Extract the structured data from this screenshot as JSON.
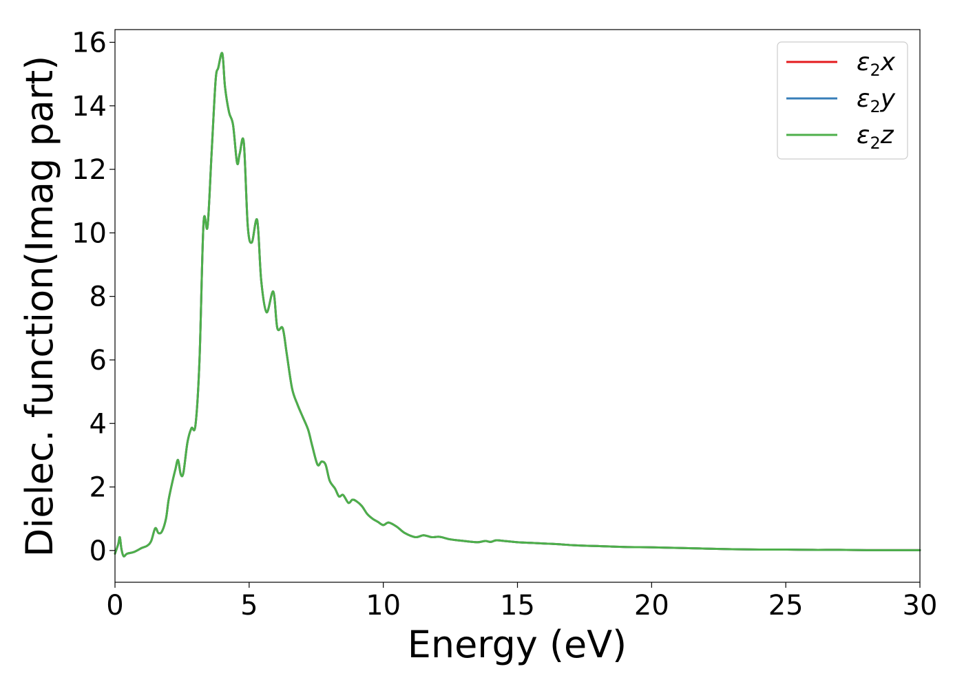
{
  "chart_data": {
    "type": "line",
    "title": "",
    "xlabel": "Energy (eV)",
    "ylabel": "Dielec. function(Imag part)",
    "xlim": [
      0,
      30
    ],
    "ylim": [
      -1,
      16.4
    ],
    "xticks": [
      0,
      5,
      10,
      15,
      20,
      25,
      30
    ],
    "yticks": [
      0,
      2,
      4,
      6,
      8,
      10,
      12,
      14,
      16
    ],
    "grid": false,
    "legend_position": "top-right",
    "legend": [
      {
        "base": "ε",
        "sub": "2",
        "comp": "x",
        "color": "#e41a1c"
      },
      {
        "base": "ε",
        "sub": "2",
        "comp": "y",
        "color": "#377eb8"
      },
      {
        "base": "ε",
        "sub": "2",
        "comp": "z",
        "color": "#4daf4a"
      }
    ],
    "x": [
      0.0,
      0.12,
      0.18,
      0.24,
      0.32,
      0.45,
      0.7,
      1.0,
      1.2,
      1.35,
      1.5,
      1.62,
      1.75,
      1.9,
      2.0,
      2.15,
      2.25,
      2.35,
      2.45,
      2.55,
      2.7,
      2.85,
      3.0,
      3.15,
      3.3,
      3.45,
      3.6,
      3.75,
      3.85,
      4.0,
      4.1,
      4.25,
      4.4,
      4.55,
      4.65,
      4.8,
      4.95,
      5.1,
      5.3,
      5.45,
      5.65,
      5.9,
      6.05,
      6.25,
      6.4,
      6.6,
      6.8,
      7.0,
      7.2,
      7.35,
      7.55,
      7.7,
      7.85,
      8.0,
      8.2,
      8.35,
      8.5,
      8.7,
      8.85,
      9.0,
      9.2,
      9.4,
      9.6,
      9.8,
      10.0,
      10.2,
      10.5,
      10.8,
      11.2,
      11.5,
      11.8,
      12.1,
      12.5,
      13.0,
      13.5,
      13.8,
      14.0,
      14.2,
      14.5,
      15.0,
      15.5,
      16.0,
      16.5,
      17.0,
      17.5,
      18.0,
      19.0,
      20.0,
      21.0,
      22.0,
      23.0,
      24.0,
      25.0,
      26.0,
      27.0,
      28.0,
      29.0,
      30.0
    ],
    "series": [
      {
        "values": [
          -0.1,
          0.2,
          0.42,
          0.05,
          -0.18,
          -0.1,
          -0.05,
          0.08,
          0.15,
          0.3,
          0.7,
          0.55,
          0.6,
          1.0,
          1.6,
          2.2,
          2.55,
          2.85,
          2.4,
          2.45,
          3.4,
          3.85,
          3.95,
          6.0,
          10.3,
          10.2,
          12.5,
          14.8,
          15.2,
          15.65,
          14.6,
          13.8,
          13.4,
          12.2,
          12.5,
          12.85,
          10.2,
          9.7,
          10.4,
          8.5,
          7.5,
          8.15,
          7.0,
          7.0,
          6.2,
          5.1,
          4.6,
          4.2,
          3.8,
          3.3,
          2.7,
          2.8,
          2.7,
          2.2,
          1.95,
          1.7,
          1.75,
          1.5,
          1.6,
          1.55,
          1.4,
          1.15,
          1.0,
          0.9,
          0.8,
          0.88,
          0.75,
          0.55,
          0.42,
          0.48,
          0.42,
          0.43,
          0.35,
          0.3,
          0.26,
          0.3,
          0.27,
          0.32,
          0.3,
          0.26,
          0.24,
          0.22,
          0.2,
          0.17,
          0.15,
          0.14,
          0.11,
          0.1,
          0.08,
          0.06,
          0.04,
          0.03,
          0.03,
          0.02,
          0.02,
          0.01,
          0.01,
          0.01
        ]
      },
      {
        "values": [
          -0.1,
          0.2,
          0.42,
          0.05,
          -0.18,
          -0.1,
          -0.05,
          0.08,
          0.15,
          0.3,
          0.7,
          0.55,
          0.6,
          1.0,
          1.6,
          2.2,
          2.55,
          2.85,
          2.4,
          2.45,
          3.4,
          3.85,
          3.95,
          6.0,
          10.3,
          10.2,
          12.5,
          14.8,
          15.2,
          15.65,
          14.6,
          13.8,
          13.4,
          12.2,
          12.5,
          12.85,
          10.2,
          9.7,
          10.4,
          8.5,
          7.5,
          8.15,
          7.0,
          7.0,
          6.2,
          5.1,
          4.6,
          4.2,
          3.8,
          3.3,
          2.7,
          2.8,
          2.7,
          2.2,
          1.95,
          1.7,
          1.75,
          1.5,
          1.6,
          1.55,
          1.4,
          1.15,
          1.0,
          0.9,
          0.8,
          0.88,
          0.75,
          0.55,
          0.42,
          0.48,
          0.42,
          0.43,
          0.35,
          0.3,
          0.26,
          0.3,
          0.27,
          0.32,
          0.3,
          0.26,
          0.24,
          0.22,
          0.2,
          0.17,
          0.15,
          0.14,
          0.11,
          0.1,
          0.08,
          0.06,
          0.04,
          0.03,
          0.03,
          0.02,
          0.02,
          0.01,
          0.01,
          0.01
        ]
      },
      {
        "values": [
          -0.1,
          0.2,
          0.42,
          0.05,
          -0.18,
          -0.1,
          -0.05,
          0.08,
          0.15,
          0.3,
          0.7,
          0.55,
          0.6,
          1.0,
          1.6,
          2.2,
          2.55,
          2.85,
          2.4,
          2.45,
          3.4,
          3.85,
          3.95,
          6.0,
          10.3,
          10.2,
          12.5,
          14.8,
          15.2,
          15.65,
          14.6,
          13.8,
          13.4,
          12.2,
          12.5,
          12.85,
          10.2,
          9.7,
          10.4,
          8.5,
          7.5,
          8.15,
          7.0,
          7.0,
          6.2,
          5.1,
          4.6,
          4.2,
          3.8,
          3.3,
          2.7,
          2.8,
          2.7,
          2.2,
          1.95,
          1.7,
          1.75,
          1.5,
          1.6,
          1.55,
          1.4,
          1.15,
          1.0,
          0.9,
          0.8,
          0.88,
          0.75,
          0.55,
          0.42,
          0.48,
          0.42,
          0.43,
          0.35,
          0.3,
          0.26,
          0.3,
          0.27,
          0.32,
          0.3,
          0.26,
          0.24,
          0.22,
          0.2,
          0.17,
          0.15,
          0.14,
          0.11,
          0.1,
          0.08,
          0.06,
          0.04,
          0.03,
          0.03,
          0.02,
          0.02,
          0.01,
          0.01,
          0.01
        ]
      }
    ]
  }
}
